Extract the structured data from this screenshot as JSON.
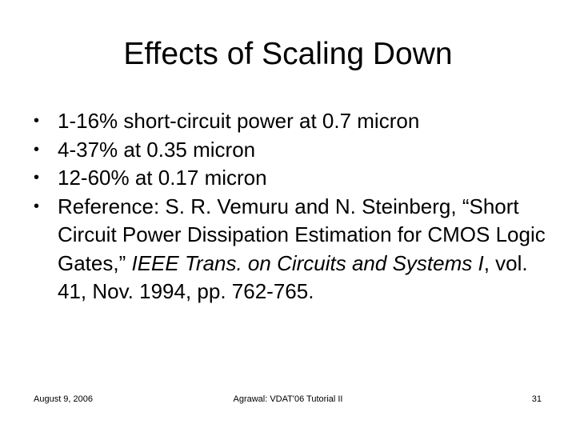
{
  "slide": {
    "title": "Effects of Scaling Down",
    "bullets": [
      "1-16% short-circuit power at 0.7 micron",
      "4-37% at 0.35 micron",
      "12-60% at 0.17 micron"
    ],
    "reference": {
      "prefix": "Reference: S. R. Vemuru and N. Steinberg, “Short Circuit Power Dissipation Estimation for CMOS Logic Gates,” ",
      "journal": "IEEE Trans. on Circuits and Systems I",
      "suffix": ", vol. 41, Nov. 1994, pp. 762-765."
    },
    "bullet_glyph": "•"
  },
  "footer": {
    "date": "August 9, 2006",
    "center": "Agrawal: VDAT'06 Tutorial II",
    "page": "31"
  }
}
